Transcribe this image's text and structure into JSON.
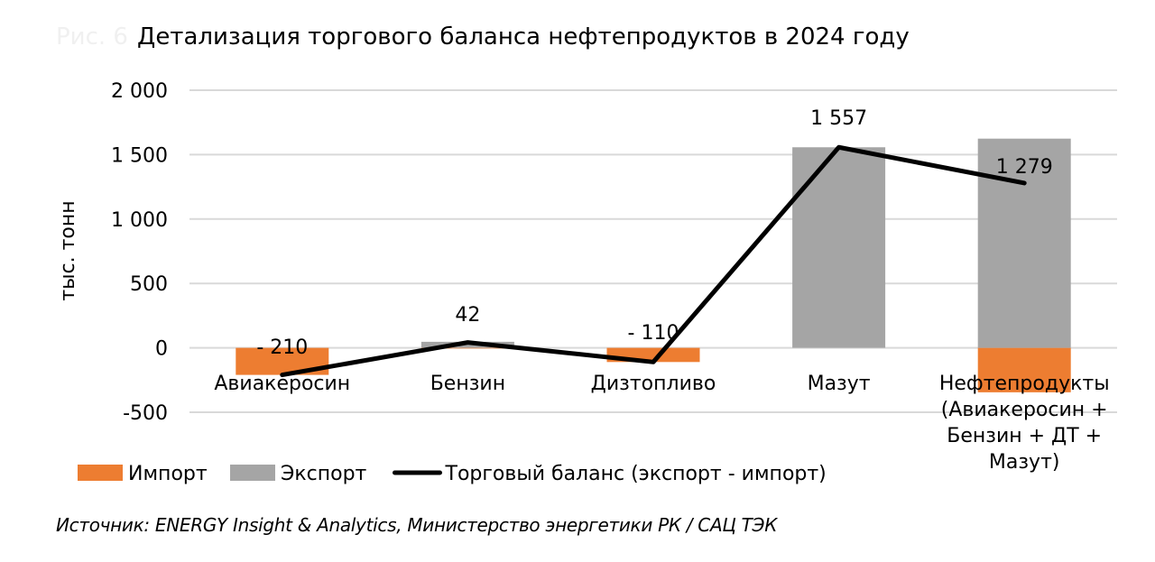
{
  "figure": {
    "prefix": "Рис. 6",
    "title": "Детализация торгового баланса нефтепродуктов в 2024 году",
    "source": "Источник: ENERGY Insight & Analytics, Министерство энергетики РК / САЦ ТЭК"
  },
  "chart_data": {
    "type": "bar",
    "title": "Детализация торгового баланса нефтепродуктов в 2024 году",
    "ylabel": "тыс. тонн",
    "ylim": [
      -500,
      2000
    ],
    "yticks": [
      2000,
      1500,
      1000,
      500,
      0,
      -500
    ],
    "ytick_labels": [
      "2 000",
      "1 500",
      "1 000",
      "500",
      "0",
      "-500"
    ],
    "grid": true,
    "legend_position": "bottom",
    "categories": [
      [
        "Авиакеросин"
      ],
      [
        "Бензин"
      ],
      [
        "Дизтопливо"
      ],
      [
        "Мазут"
      ],
      [
        "Нефтепродукты",
        "(Авиакеросин +",
        "Бензин + ДТ +",
        "Мазут)"
      ]
    ],
    "series": [
      {
        "name": "Импорт",
        "kind": "bar",
        "color": "#ED7D31",
        "values": [
          -210,
          -5,
          -110,
          0,
          -345
        ]
      },
      {
        "name": "Экспорт",
        "kind": "bar",
        "color": "#A5A5A5",
        "values": [
          0,
          47,
          0,
          1557,
          1624
        ]
      },
      {
        "name": "Торговый баланс (экспорт - импорт)",
        "kind": "line",
        "color": "#000000",
        "values": [
          -210,
          42,
          -110,
          1557,
          1279
        ]
      }
    ],
    "data_labels": [
      "- 210",
      "42",
      "- 110",
      "1 557",
      "1 279"
    ]
  }
}
